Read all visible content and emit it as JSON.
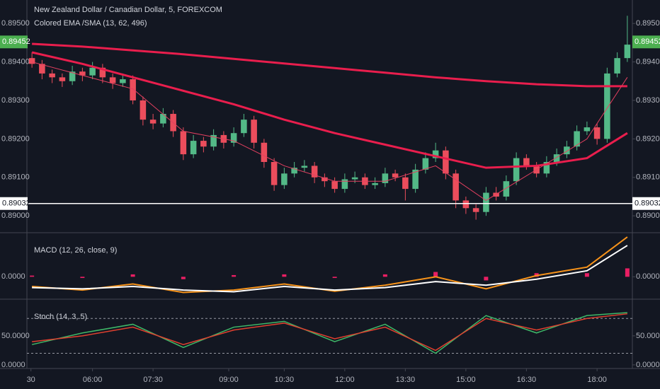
{
  "chart_data": [
    {
      "type": "candlestick",
      "title": "New Zealand Dollar / Canadian Dollar, 5, FOREXCOM",
      "subtitle": "Colored EMA /SMA (13, 62, 496)",
      "up_color": "#53b987",
      "down_color": "#eb4d5c",
      "open": [
        0.8941,
        0.89395,
        0.8937,
        0.8936,
        0.8935,
        0.89375,
        0.89365,
        0.89385,
        0.8936,
        0.89345,
        0.89355,
        0.893,
        0.8925,
        0.8924,
        0.89265,
        0.8922,
        0.8916,
        0.89195,
        0.8918,
        0.8921,
        0.8919,
        0.89215,
        0.8925,
        0.8919,
        0.8914,
        0.8908,
        0.8911,
        0.89125,
        0.8913,
        0.891,
        0.8909,
        0.8907,
        0.89095,
        0.891,
        0.8908,
        0.89085,
        0.8911,
        0.891,
        0.8907,
        0.8912,
        0.8915,
        0.8917,
        0.8911,
        0.8904,
        0.8902,
        0.8901,
        0.8906,
        0.8905,
        0.8909,
        0.8915,
        0.8913,
        0.8911,
        0.8914,
        0.8916,
        0.8918,
        0.8922,
        0.8923,
        0.892,
        0.8937,
        0.8941
      ],
      "high": [
        0.89425,
        0.89405,
        0.8938,
        0.8937,
        0.8939,
        0.89385,
        0.894,
        0.89395,
        0.8937,
        0.8937,
        0.89365,
        0.8931,
        0.89265,
        0.8928,
        0.89275,
        0.8923,
        0.8921,
        0.89205,
        0.89225,
        0.8922,
        0.8923,
        0.89265,
        0.8926,
        0.892,
        0.8915,
        0.89125,
        0.8914,
        0.89145,
        0.8914,
        0.8911,
        0.891,
        0.8911,
        0.89115,
        0.8911,
        0.891,
        0.89125,
        0.8912,
        0.8911,
        0.89135,
        0.89165,
        0.8919,
        0.8918,
        0.8912,
        0.8905,
        0.8903,
        0.89075,
        0.89075,
        0.89105,
        0.89165,
        0.8916,
        0.8914,
        0.89155,
        0.89175,
        0.89195,
        0.89235,
        0.89245,
        0.8924,
        0.89385,
        0.89425,
        0.8952
      ],
      "low": [
        0.89385,
        0.89355,
        0.89345,
        0.89335,
        0.8934,
        0.8935,
        0.89355,
        0.89345,
        0.8933,
        0.89335,
        0.8929,
        0.89235,
        0.89225,
        0.8923,
        0.89205,
        0.89145,
        0.8915,
        0.89165,
        0.8917,
        0.89175,
        0.8918,
        0.89205,
        0.89175,
        0.89125,
        0.89065,
        0.8907,
        0.891,
        0.89115,
        0.89085,
        0.89075,
        0.8906,
        0.8906,
        0.89085,
        0.8907,
        0.8907,
        0.89075,
        0.8909,
        0.8904,
        0.8906,
        0.8911,
        0.8914,
        0.89095,
        0.8902,
        0.89005,
        0.8899,
        0.89,
        0.8904,
        0.8904,
        0.8908,
        0.8912,
        0.891,
        0.891,
        0.8913,
        0.8915,
        0.8917,
        0.8921,
        0.89185,
        0.8919,
        0.8936,
        0.894
      ],
      "close": [
        0.89395,
        0.8937,
        0.8936,
        0.8935,
        0.89375,
        0.89365,
        0.89385,
        0.8936,
        0.89345,
        0.89355,
        0.893,
        0.8925,
        0.8924,
        0.89265,
        0.8922,
        0.8916,
        0.89195,
        0.8918,
        0.8921,
        0.8919,
        0.89215,
        0.8925,
        0.8919,
        0.8914,
        0.8908,
        0.8911,
        0.89125,
        0.8913,
        0.891,
        0.8909,
        0.8907,
        0.89095,
        0.891,
        0.8908,
        0.89085,
        0.8911,
        0.891,
        0.8907,
        0.8912,
        0.8915,
        0.8917,
        0.8911,
        0.8904,
        0.8902,
        0.8901,
        0.8906,
        0.8905,
        0.8909,
        0.8915,
        0.8913,
        0.8911,
        0.8914,
        0.8916,
        0.8918,
        0.8922,
        0.8923,
        0.892,
        0.8937,
        0.8941,
        0.89445
      ],
      "line_x": [
        0.5,
        5.5,
        10.5,
        15.5,
        20.5,
        25.5,
        30.5,
        35.5,
        40.5,
        45.5,
        50.5,
        55.5,
        59.5
      ],
      "series": [
        {
          "color": "#e91e4d",
          "width": 3,
          "values": [
            0.89447,
            0.8944,
            0.8943,
            0.8942,
            0.89408,
            0.89396,
            0.89384,
            0.89372,
            0.8936,
            0.8935,
            0.89342,
            0.89337,
            0.89337
          ]
        },
        {
          "color": "#e91e4d",
          "width": 3,
          "values": [
            0.89425,
            0.89395,
            0.8936,
            0.89325,
            0.8929,
            0.8925,
            0.89215,
            0.89185,
            0.89155,
            0.89125,
            0.8913,
            0.8915,
            0.89215
          ]
        },
        {
          "color": "#e34060",
          "width": 1,
          "values": [
            0.894,
            0.89365,
            0.8933,
            0.8922,
            0.89195,
            0.8913,
            0.8909,
            0.8909,
            0.8913,
            0.8904,
            0.8912,
            0.892,
            0.8936
          ]
        }
      ],
      "ylim": [
        0.88958,
        0.89561
      ],
      "yticks": [
        {
          "value": 0.89,
          "label": "0.89000"
        },
        {
          "value": 0.891,
          "label": "0.89100"
        },
        {
          "value": 0.892,
          "label": "0.89200"
        },
        {
          "value": 0.893,
          "label": "0.89300"
        },
        {
          "value": 0.894,
          "label": "0.89400"
        },
        {
          "value": 0.895,
          "label": "0.89500"
        }
      ],
      "last_price": {
        "value": 0.89452,
        "label": "0.89452"
      },
      "last_color": "#4caf50",
      "marker_price": {
        "value": 0.89032,
        "label": "0.89032"
      }
    },
    {
      "type": "macd",
      "title": "MACD (12, 26, close, 9)",
      "line_x": [
        0.5,
        5.5,
        10.5,
        15.5,
        20.5,
        25.5,
        30.5,
        35.5,
        40.5,
        45.5,
        50.5,
        55.5,
        59.5
      ],
      "series": [
        {
          "color": "#f7931a",
          "width": 2,
          "values": [
            -0.0004,
            -0.00055,
            -0.0003,
            -0.00065,
            -0.00055,
            -0.0003,
            -0.0006,
            -0.00035,
            0,
            -0.0005,
            5e-05,
            0.0004,
            0.00165
          ]
        },
        {
          "color": "#ffffff",
          "width": 2,
          "values": [
            -0.00045,
            -0.0005,
            -0.0004,
            -0.00055,
            -0.00062,
            -0.0004,
            -0.00055,
            -0.00045,
            -0.0002,
            -0.00035,
            -0.0001,
            0.00025,
            0.0013
          ]
        }
      ],
      "histogram": [
        5e-05,
        -5e-05,
        0.0001,
        -0.0001,
        7e-05,
        0.0001,
        -5e-05,
        0.0001,
        0.0002,
        -0.00015,
        0.00015,
        0.00015,
        0.00035
      ],
      "histogram_color": "#e91e63",
      "ylim": [
        -0.0009,
        0.0018
      ],
      "yticks": [
        {
          "value": 0,
          "label": "0.0000"
        }
      ]
    },
    {
      "type": "stoch",
      "title": "Stoch (14, 3, 5)",
      "line_x": [
        0.5,
        5.5,
        10.5,
        15.5,
        20.5,
        25.5,
        30.5,
        35.5,
        40.5,
        45.5,
        50.5,
        55.5,
        59.5
      ],
      "series": [
        {
          "color": "#3fb868",
          "width": 1.5,
          "values": [
            35,
            55,
            70,
            30,
            65,
            75,
            40,
            70,
            20,
            85,
            55,
            85,
            90
          ]
        },
        {
          "color": "#e0402f",
          "width": 1.5,
          "values": [
            40,
            50,
            65,
            35,
            60,
            72,
            45,
            65,
            25,
            80,
            60,
            80,
            88
          ]
        }
      ],
      "bands": [
        20,
        80
      ],
      "ylim": [
        -5,
        112
      ],
      "yticks": [
        {
          "value": 0,
          "label": "0.0000"
        },
        {
          "value": 50,
          "label": "50.0000"
        }
      ],
      "xlim": [
        0,
        60
      ],
      "xticks": [
        {
          "value": 0.4,
          "label": "30"
        },
        {
          "value": 6.5,
          "label": "06:00"
        },
        {
          "value": 12.5,
          "label": "07:30"
        },
        {
          "value": 20,
          "label": "09:00"
        },
        {
          "value": 25.5,
          "label": "10:30"
        },
        {
          "value": 31.5,
          "label": "12:00"
        },
        {
          "value": 37.5,
          "label": "13:30"
        },
        {
          "value": 43.5,
          "label": "15:00"
        },
        {
          "value": 49.5,
          "label": "16:30"
        },
        {
          "value": 56.5,
          "label": "18:00"
        }
      ]
    }
  ]
}
